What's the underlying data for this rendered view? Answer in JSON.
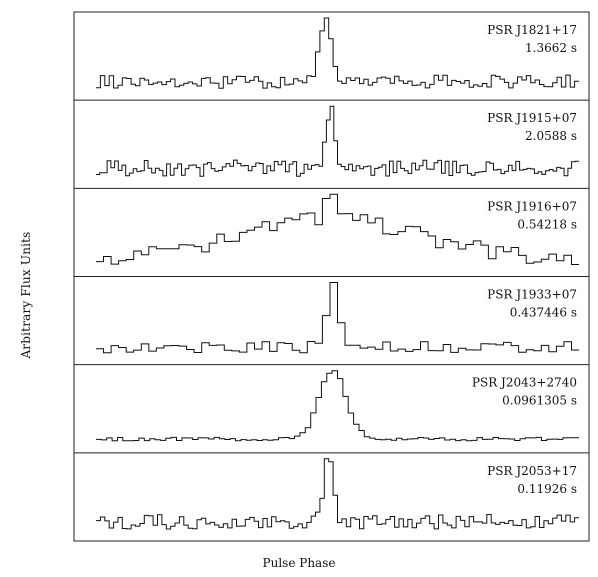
{
  "chart_data": {
    "type": "line",
    "xlabel": "Pulse Phase",
    "ylabel": "Arbitrary Flux Units",
    "grid": false,
    "panels": [
      {
        "name": "PSR J1821+17",
        "period": "1.3662 s",
        "noise": 0.1,
        "bins": 110,
        "peak_phase": 0.475,
        "peak_width": 0.012,
        "seed": 3
      },
      {
        "name": "PSR J1915+07",
        "period": "2.0588 s",
        "noise": 0.13,
        "bins": 130,
        "peak_phase": 0.485,
        "peak_width": 0.008,
        "seed": 7
      },
      {
        "name": "PSR J1916+07",
        "period": "0.54218 s",
        "noise": 0.12,
        "bins": 64,
        "peak_phase": 0.49,
        "peak_width": 0.17,
        "seed": 11
      },
      {
        "name": "PSR J1933+07",
        "period": "0.437446 s",
        "noise": 0.1,
        "bins": 64,
        "peak_phase": 0.49,
        "peak_width": 0.012,
        "seed": 19
      },
      {
        "name": "PSR J2043+2740",
        "period": "0.0961305 s",
        "noise": 0.025,
        "bins": 90,
        "peak_phase": 0.49,
        "peak_width": 0.028,
        "seed": 23
      },
      {
        "name": "PSR J2053+17",
        "period": "0.11926 s",
        "noise": 0.1,
        "bins": 110,
        "peak_phase": 0.482,
        "peak_width": 0.009,
        "seed": 31
      }
    ]
  }
}
